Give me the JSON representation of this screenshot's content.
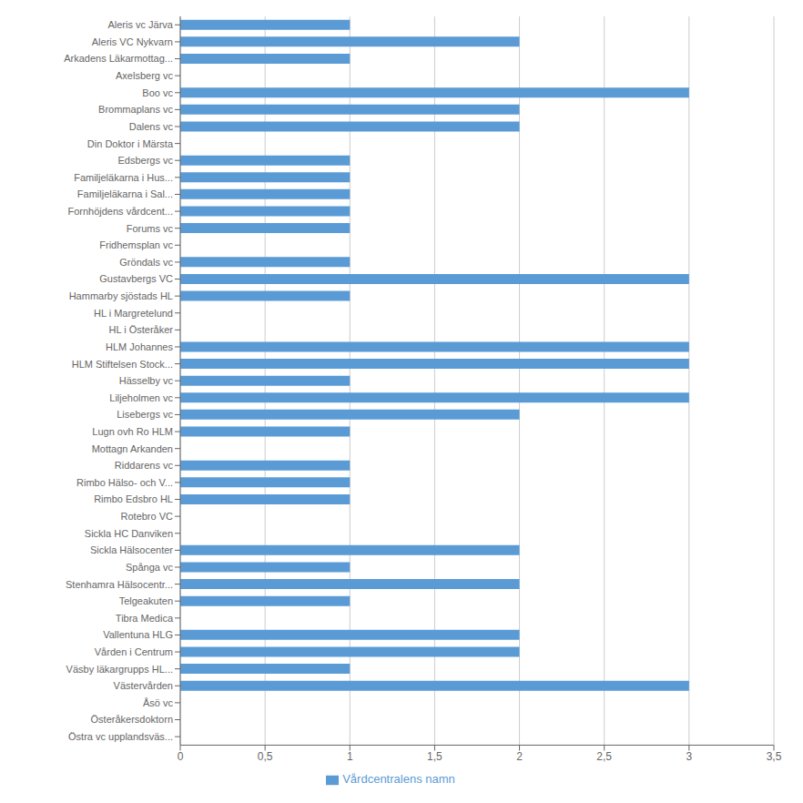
{
  "chart_data": {
    "type": "bar",
    "orientation": "horizontal",
    "categories": [
      "Aleris vc Järva",
      "Aleris VC Nykvarn",
      "Arkadens Läkarmottag...",
      "Axelsberg vc",
      "Boo vc",
      "Brommaplans vc",
      "Dalens vc",
      "Din Doktor i Märsta",
      "Edsbergs vc",
      "Familjeläkarna i Hus...",
      "Familjeläkarna i Sal...",
      "Fornhöjdens vårdcent...",
      "Forums vc",
      "Fridhemsplan vc",
      "Gröndals vc",
      "Gustavbergs VC",
      "Hammarby sjöstads HL",
      "HL i Margretelund",
      "HL i Österåker",
      "HLM Johannes",
      "HLM Stiftelsen Stock...",
      "Hässelby vc",
      "Liljeholmen  vc",
      "Lisebergs vc",
      "Lugn ovh Ro HLM",
      "Mottagn Arkanden",
      "Riddarens vc",
      "Rimbo  Hälso-  och V...",
      "Rimbo Edsbro HL",
      "Rotebro VC",
      "Sickla HC Danviken",
      "Sickla Hälsocenter",
      "Spånga vc",
      "Stenhamra Hälsocentr...",
      "Telgeakuten",
      "Tibra Medica",
      "Vallentuna HLG",
      "Vården i Centrum",
      "Väsby läkargrupps HL...",
      "Västervården",
      "Åsö vc",
      "Österåkersdoktorn",
      "Östra vc upplandsväs..."
    ],
    "series": [
      {
        "name": "Vårdcentralens namn",
        "color": "#5b9bd5",
        "values": [
          1,
          2,
          1,
          0,
          3,
          2,
          2,
          0,
          1,
          1,
          1,
          1,
          1,
          0,
          1,
          3,
          1,
          0,
          0,
          3,
          3,
          1,
          3,
          2,
          1,
          0,
          1,
          1,
          1,
          0,
          0,
          2,
          1,
          2,
          1,
          0,
          2,
          2,
          1,
          3,
          0,
          0,
          0
        ]
      }
    ],
    "xlim": [
      0,
      3.5
    ],
    "xticks": [
      0,
      {
        "value": 0.5,
        "label": "0,5"
      },
      1,
      {
        "value": 1.5,
        "label": "1,5"
      },
      2,
      {
        "value": 2.5,
        "label": "2,5"
      },
      3,
      {
        "value": 3.5,
        "label": "3,5"
      }
    ],
    "grid": true,
    "legend": "bottom"
  }
}
